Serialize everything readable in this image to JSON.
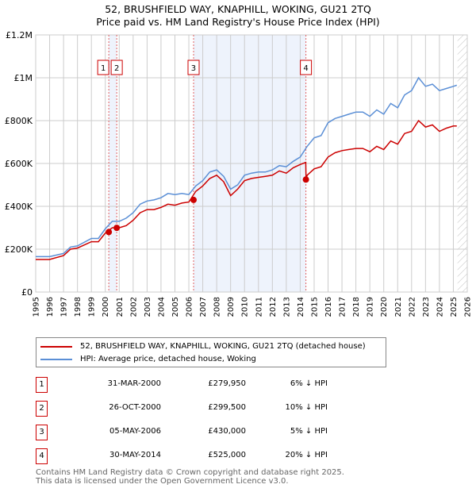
{
  "title_line1": "52, BRUSHFIELD WAY, KNAPHILL, WOKING, GU21 2TQ",
  "title_line2": "Price paid vs. HM Land Registry's House Price Index (HPI)",
  "chart_data": {
    "type": "line",
    "ylabel": "",
    "xlabel": "",
    "ylim": [
      0,
      1200000
    ],
    "xlim": [
      1995,
      2026
    ],
    "y_ticks": [
      {
        "v": 0,
        "label": "£0"
      },
      {
        "v": 200000,
        "label": "£200K"
      },
      {
        "v": 400000,
        "label": "£400K"
      },
      {
        "v": 600000,
        "label": "£600K"
      },
      {
        "v": 800000,
        "label": "£800K"
      },
      {
        "v": 1000000,
        "label": "£1M"
      },
      {
        "v": 1200000,
        "label": "£1.2M"
      }
    ],
    "x_ticks": [
      "1995",
      "1996",
      "1997",
      "1998",
      "1999",
      "2000",
      "2001",
      "2002",
      "2003",
      "2004",
      "2005",
      "2006",
      "2007",
      "2008",
      "2009",
      "2010",
      "2011",
      "2012",
      "2013",
      "2014",
      "2015",
      "2016",
      "2017",
      "2018",
      "2019",
      "2020",
      "2021",
      "2022",
      "2023",
      "2024",
      "2025",
      "2026"
    ],
    "grid": true,
    "series": [
      {
        "name": "52, BRUSHFIELD WAY, KNAPHILL, WOKING, GU21 2TQ (detached house)",
        "color": "#cc0000",
        "x": [
          1995,
          1996,
          1997,
          1997.5,
          1998,
          1999,
          1999.5,
          2000,
          2000.5,
          2001,
          2001.5,
          2002,
          2002.5,
          2003,
          2003.5,
          2004,
          2004.5,
          2005,
          2005.5,
          2006,
          2006.5,
          2007,
          2007.5,
          2008,
          2008.5,
          2009,
          2009.5,
          2010,
          2010.5,
          2011,
          2011.5,
          2012,
          2012.5,
          2013,
          2013.5,
          2014,
          2014.4,
          2014.42,
          2014.5,
          2015,
          2015.5,
          2016,
          2016.5,
          2017,
          2017.5,
          2018,
          2018.5,
          2019,
          2019.5,
          2020,
          2020.5,
          2021,
          2021.5,
          2022,
          2022.5,
          2023,
          2023.5,
          2024,
          2024.5,
          2025,
          2025.25
        ],
        "y": [
          152000,
          152000,
          170000,
          200000,
          205000,
          235000,
          235000,
          275000,
          300000,
          300000,
          310000,
          335000,
          370000,
          385000,
          385000,
          395000,
          410000,
          405000,
          415000,
          420000,
          470000,
          495000,
          530000,
          545000,
          515000,
          450000,
          480000,
          520000,
          530000,
          535000,
          540000,
          545000,
          565000,
          555000,
          580000,
          595000,
          605000,
          525000,
          545000,
          575000,
          585000,
          630000,
          650000,
          660000,
          665000,
          670000,
          670000,
          655000,
          680000,
          665000,
          705000,
          690000,
          740000,
          750000,
          800000,
          770000,
          780000,
          750000,
          765000,
          775000,
          775000
        ]
      },
      {
        "name": "HPI: Average price, detached house, Woking",
        "color": "#5b8fd6",
        "x": [
          1995,
          1996,
          1997,
          1997.5,
          1998,
          1999,
          1999.5,
          2000,
          2000.5,
          2001,
          2001.5,
          2002,
          2002.5,
          2003,
          2003.5,
          2004,
          2004.5,
          2005,
          2005.5,
          2006,
          2006.5,
          2007,
          2007.5,
          2008,
          2008.5,
          2009,
          2009.5,
          2010,
          2010.5,
          2011,
          2011.5,
          2012,
          2012.5,
          2013,
          2013.5,
          2014,
          2014.5,
          2015,
          2015.5,
          2016,
          2016.5,
          2017,
          2017.5,
          2018,
          2018.5,
          2019,
          2019.5,
          2020,
          2020.5,
          2021,
          2021.5,
          2022,
          2022.5,
          2023,
          2023.5,
          2024,
          2024.5,
          2025,
          2025.25
        ],
        "y": [
          165000,
          165000,
          180000,
          210000,
          215000,
          250000,
          250000,
          295000,
          330000,
          330000,
          345000,
          370000,
          410000,
          425000,
          430000,
          440000,
          460000,
          455000,
          460000,
          455000,
          495000,
          520000,
          560000,
          570000,
          540000,
          480000,
          500000,
          545000,
          555000,
          560000,
          560000,
          570000,
          590000,
          585000,
          610000,
          630000,
          680000,
          720000,
          730000,
          790000,
          810000,
          820000,
          830000,
          840000,
          840000,
          820000,
          850000,
          830000,
          880000,
          860000,
          920000,
          940000,
          1000000,
          960000,
          970000,
          940000,
          950000,
          960000,
          965000
        ]
      }
    ],
    "sales": [
      {
        "n": "1",
        "x": 2000.25,
        "y": 279950
      },
      {
        "n": "2",
        "x": 2000.82,
        "y": 299500
      },
      {
        "n": "3",
        "x": 2006.34,
        "y": 430000
      },
      {
        "n": "4",
        "x": 2014.41,
        "y": 525000
      }
    ],
    "shaded_ranges": [
      [
        2000.25,
        2000.82
      ],
      [
        2006.34,
        2014.41
      ]
    ],
    "hatched_from": 2025.3
  },
  "legend": {
    "property": "52, BRUSHFIELD WAY, KNAPHILL, WOKING, GU21 2TQ (detached house)",
    "hpi": "HPI: Average price, detached house, Woking"
  },
  "transactions": [
    {
      "n": "1",
      "date": "31-MAR-2000",
      "price": "£279,950",
      "pct": "6% ↓ HPI"
    },
    {
      "n": "2",
      "date": "26-OCT-2000",
      "price": "£299,500",
      "pct": "10% ↓ HPI"
    },
    {
      "n": "3",
      "date": "05-MAY-2006",
      "price": "£430,000",
      "pct": "5% ↓ HPI"
    },
    {
      "n": "4",
      "date": "30-MAY-2014",
      "price": "£525,000",
      "pct": "20% ↓ HPI"
    }
  ],
  "footer": {
    "line1": "Contains HM Land Registry data © Crown copyright and database right 2025.",
    "line2": "This data is licensed under the Open Government Licence v3.0."
  }
}
